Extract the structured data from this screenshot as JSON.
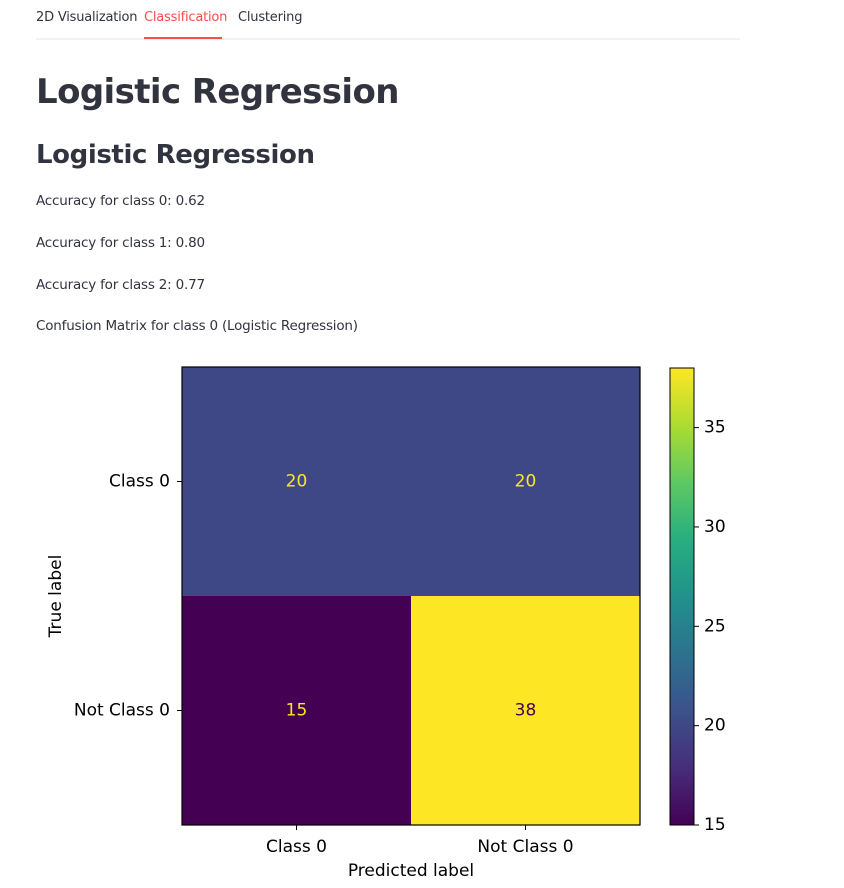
{
  "tabs": [
    {
      "label": "2D Visualization",
      "active": false
    },
    {
      "label": "Classification",
      "active": true
    },
    {
      "label": "Clustering",
      "active": false
    }
  ],
  "title": "Logistic Regression",
  "subtitle": "Logistic Regression",
  "accuracy_lines": [
    "Accuracy for class 0: 0.62",
    "Accuracy for class 1: 0.80",
    "Accuracy for class 2: 0.77"
  ],
  "matrix_caption": "Confusion Matrix for class 0 (Logistic Regression)",
  "colors": {
    "accent": "#ff4b4b",
    "text": "#31333f"
  },
  "chart_data": {
    "type": "heatmap",
    "title": "",
    "xlabel": "Predicted label",
    "ylabel": "True label",
    "x_categories": [
      "Class 0",
      "Not Class 0"
    ],
    "y_categories": [
      "Class 0",
      "Not Class 0"
    ],
    "values": [
      [
        20,
        20
      ],
      [
        15,
        38
      ]
    ],
    "colormap": "viridis",
    "colorbar": {
      "min": 15,
      "max": 38,
      "ticks": [
        15,
        20,
        25,
        30,
        35
      ]
    }
  }
}
